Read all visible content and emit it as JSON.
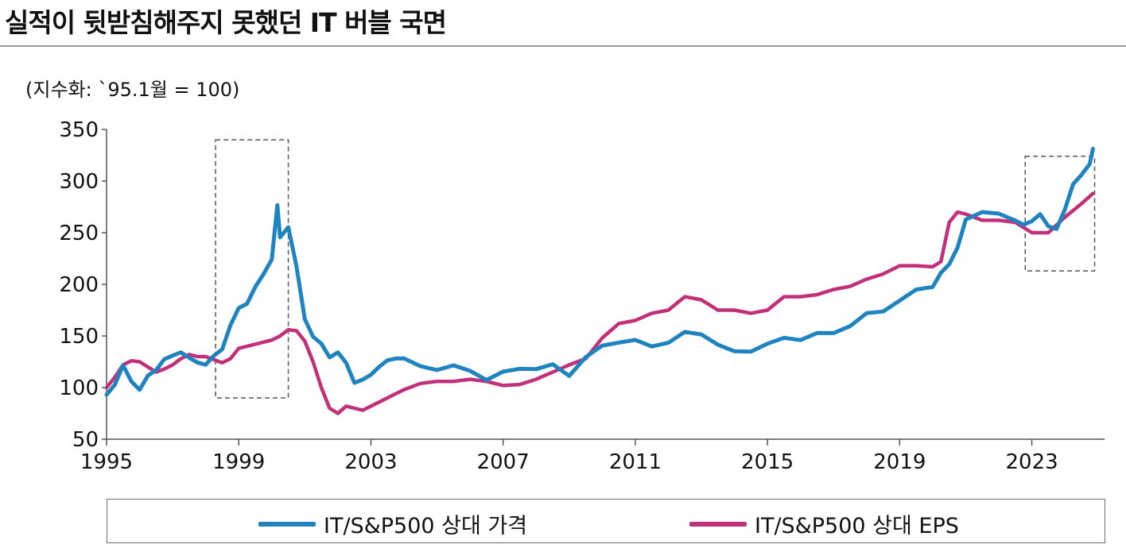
{
  "title": "실적이 뒷받침해주지 못했던 IT 버블 국면",
  "unit_label": "(지수화: `95.1월 = 100)",
  "colors": {
    "price": "#1f83bf",
    "eps": "#c2307a",
    "axis": "#555555",
    "box": "#555555"
  },
  "chart_data": {
    "type": "line",
    "title": "실적이 뒷받침해주지 못했던 IT 버블 국면",
    "ylabel": "(지수화: `95.1월 = 100)",
    "xlim": [
      1995,
      2025.2
    ],
    "ylim": [
      50,
      350
    ],
    "x_ticks": [
      1995,
      1999,
      2003,
      2007,
      2011,
      2015,
      2019,
      2023
    ],
    "x_tick_labels": [
      "1995",
      "1999",
      "2003",
      "2007",
      "2011",
      "2015",
      "2019",
      "2023"
    ],
    "y_ticks": [
      50,
      100,
      150,
      200,
      250,
      300,
      350
    ],
    "y_tick_labels": [
      "50",
      "100",
      "150",
      "200",
      "250",
      "300",
      "350"
    ],
    "legend_position": "bottom",
    "highlight_boxes": [
      {
        "x0": 1998.3,
        "x1": 2000.5,
        "y0": 90,
        "y1": 340
      },
      {
        "x0": 2022.8,
        "x1": 2024.9,
        "y0": 213,
        "y1": 324
      }
    ],
    "series": [
      {
        "name": "IT/S&P500 상대 가격",
        "x": [
          1995.0,
          1995.25,
          1995.5,
          1995.75,
          1996.0,
          1996.25,
          1996.5,
          1996.75,
          1997.0,
          1997.25,
          1997.5,
          1997.75,
          1998.0,
          1998.25,
          1998.5,
          1998.75,
          1999.0,
          1999.25,
          1999.5,
          1999.75,
          2000.0,
          2000.17,
          2000.25,
          2000.5,
          2000.75,
          2001.0,
          2001.25,
          2001.5,
          2001.75,
          2002.0,
          2002.25,
          2002.5,
          2002.75,
          2003.0,
          2003.25,
          2003.5,
          2003.75,
          2004.0,
          2004.5,
          2005.0,
          2005.5,
          2006.0,
          2006.5,
          2007.0,
          2007.5,
          2008.0,
          2008.5,
          2009.0,
          2009.5,
          2010.0,
          2010.5,
          2011.0,
          2011.5,
          2012.0,
          2012.5,
          2013.0,
          2013.5,
          2014.0,
          2014.5,
          2015.0,
          2015.5,
          2016.0,
          2016.5,
          2017.0,
          2017.5,
          2018.0,
          2018.5,
          2019.0,
          2019.5,
          2020.0,
          2020.25,
          2020.5,
          2020.75,
          2021.0,
          2021.5,
          2022.0,
          2022.5,
          2022.75,
          2023.0,
          2023.25,
          2023.5,
          2023.75,
          2024.0,
          2024.25,
          2024.5,
          2024.75,
          2024.85
        ],
        "values": [
          93,
          103,
          118,
          108,
          100,
          110,
          118,
          125,
          130,
          138,
          128,
          124,
          122,
          128,
          140,
          162,
          175,
          182,
          195,
          210,
          228,
          275,
          245,
          255,
          215,
          170,
          150,
          140,
          130,
          132,
          125,
          108,
          105,
          112,
          120,
          125,
          132,
          128,
          118,
          118,
          120,
          118,
          110,
          112,
          118,
          118,
          122,
          115,
          128,
          138,
          145,
          145,
          142,
          145,
          150,
          152,
          142,
          135,
          138,
          140,
          146,
          148,
          152,
          155,
          160,
          168,
          175,
          185,
          195,
          200,
          208,
          218,
          238,
          262,
          272,
          268,
          258,
          260,
          262,
          268,
          258,
          250,
          272,
          300,
          305,
          318,
          330
        ]
      },
      {
        "name": "IT/S&P500 상대 EPS",
        "x": [
          1995.0,
          1995.25,
          1995.5,
          1995.75,
          1996.0,
          1996.25,
          1996.5,
          1996.75,
          1997.0,
          1997.25,
          1997.5,
          1997.75,
          1998.0,
          1998.25,
          1998.5,
          1998.75,
          1999.0,
          1999.5,
          2000.0,
          2000.25,
          2000.5,
          2000.75,
          2001.0,
          2001.25,
          2001.5,
          2001.75,
          2002.0,
          2002.25,
          2002.5,
          2002.75,
          2003.0,
          2003.5,
          2004.0,
          2004.5,
          2005.0,
          2005.5,
          2006.0,
          2006.5,
          2007.0,
          2007.5,
          2008.0,
          2008.5,
          2009.0,
          2009.5,
          2010.0,
          2010.5,
          2011.0,
          2011.5,
          2012.0,
          2012.5,
          2013.0,
          2013.5,
          2014.0,
          2014.5,
          2015.0,
          2015.5,
          2016.0,
          2016.5,
          2017.0,
          2017.5,
          2018.0,
          2018.5,
          2019.0,
          2019.5,
          2020.0,
          2020.25,
          2020.5,
          2020.75,
          2021.0,
          2021.5,
          2022.0,
          2022.5,
          2022.75,
          2023.0,
          2023.5,
          2024.0,
          2024.5,
          2024.85
        ],
        "values": [
          100,
          110,
          122,
          126,
          125,
          120,
          115,
          118,
          122,
          128,
          132,
          130,
          130,
          127,
          124,
          128,
          138,
          142,
          146,
          150,
          156,
          155,
          145,
          125,
          100,
          80,
          75,
          82,
          80,
          78,
          82,
          90,
          98,
          104,
          106,
          106,
          108,
          106,
          102,
          103,
          108,
          115,
          122,
          128,
          148,
          162,
          165,
          172,
          175,
          188,
          185,
          175,
          175,
          172,
          175,
          188,
          188,
          190,
          195,
          198,
          205,
          210,
          218,
          218,
          217,
          222,
          260,
          270,
          268,
          262,
          262,
          260,
          255,
          250,
          250,
          265,
          278,
          288
        ]
      }
    ]
  }
}
